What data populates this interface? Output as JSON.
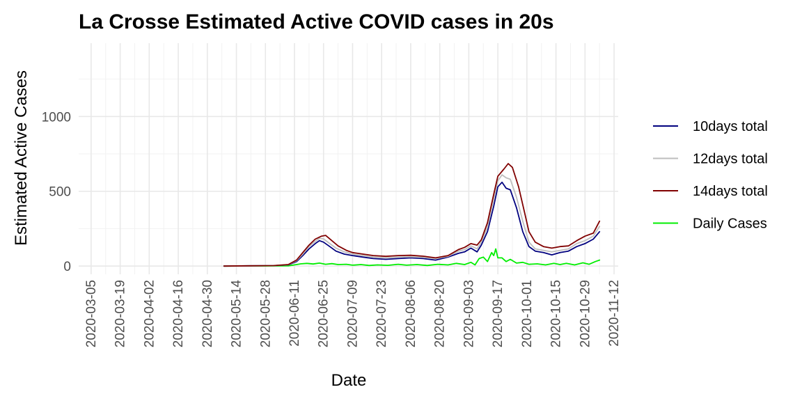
{
  "chart_data": {
    "type": "line",
    "title": "La Crosse Estimated Active COVID cases in 20s",
    "xlabel": "Date",
    "ylabel": "Estimated Active Cases",
    "x_axis": {
      "type": "date",
      "range": [
        "2020-02-28",
        "2020-11-14"
      ],
      "ticks": [
        "2020-03-05",
        "2020-03-19",
        "2020-04-02",
        "2020-04-16",
        "2020-04-30",
        "2020-05-14",
        "2020-05-28",
        "2020-06-11",
        "2020-06-25",
        "2020-07-09",
        "2020-07-23",
        "2020-08-06",
        "2020-08-20",
        "2020-09-03",
        "2020-09-17",
        "2020-10-01",
        "2020-10-15",
        "2020-10-29",
        "2020-11-12"
      ]
    },
    "y_axis": {
      "range": [
        -55,
        1490
      ],
      "ticks": [
        0,
        500,
        1000
      ]
    },
    "grid": true,
    "legend_position": "right",
    "series": [
      {
        "name": "10days total",
        "color": "#00007f",
        "points": [
          [
            "2020-05-08",
            0
          ],
          [
            "2020-05-20",
            2
          ],
          [
            "2020-06-01",
            3
          ],
          [
            "2020-06-08",
            8
          ],
          [
            "2020-06-12",
            30
          ],
          [
            "2020-06-15",
            70
          ],
          [
            "2020-06-18",
            115
          ],
          [
            "2020-06-21",
            150
          ],
          [
            "2020-06-23",
            170
          ],
          [
            "2020-06-25",
            160
          ],
          [
            "2020-06-28",
            130
          ],
          [
            "2020-07-01",
            100
          ],
          [
            "2020-07-05",
            80
          ],
          [
            "2020-07-09",
            70
          ],
          [
            "2020-07-14",
            60
          ],
          [
            "2020-07-19",
            50
          ],
          [
            "2020-07-25",
            45
          ],
          [
            "2020-07-31",
            50
          ],
          [
            "2020-08-06",
            55
          ],
          [
            "2020-08-12",
            50
          ],
          [
            "2020-08-18",
            40
          ],
          [
            "2020-08-24",
            60
          ],
          [
            "2020-08-29",
            85
          ],
          [
            "2020-09-01",
            95
          ],
          [
            "2020-09-04",
            120
          ],
          [
            "2020-09-07",
            95
          ],
          [
            "2020-09-09",
            140
          ],
          [
            "2020-09-12",
            230
          ],
          [
            "2020-09-15",
            400
          ],
          [
            "2020-09-17",
            530
          ],
          [
            "2020-09-19",
            560
          ],
          [
            "2020-09-21",
            520
          ],
          [
            "2020-09-23",
            510
          ],
          [
            "2020-09-26",
            390
          ],
          [
            "2020-09-29",
            230
          ],
          [
            "2020-10-02",
            130
          ],
          [
            "2020-10-05",
            100
          ],
          [
            "2020-10-09",
            90
          ],
          [
            "2020-10-13",
            75
          ],
          [
            "2020-10-17",
            90
          ],
          [
            "2020-10-21",
            100
          ],
          [
            "2020-10-25",
            130
          ],
          [
            "2020-10-29",
            150
          ],
          [
            "2020-11-02",
            180
          ],
          [
            "2020-11-05",
            230
          ]
        ]
      },
      {
        "name": "12days total",
        "color": "#bebebe",
        "points": [
          [
            "2020-05-08",
            0
          ],
          [
            "2020-05-20",
            2
          ],
          [
            "2020-06-01",
            3
          ],
          [
            "2020-06-08",
            9
          ],
          [
            "2020-06-12",
            36
          ],
          [
            "2020-06-15",
            80
          ],
          [
            "2020-06-18",
            130
          ],
          [
            "2020-06-21",
            165
          ],
          [
            "2020-06-23",
            185
          ],
          [
            "2020-06-25",
            182
          ],
          [
            "2020-06-28",
            150
          ],
          [
            "2020-07-01",
            120
          ],
          [
            "2020-07-05",
            95
          ],
          [
            "2020-07-09",
            80
          ],
          [
            "2020-07-14",
            70
          ],
          [
            "2020-07-19",
            60
          ],
          [
            "2020-07-25",
            55
          ],
          [
            "2020-07-31",
            60
          ],
          [
            "2020-08-06",
            62
          ],
          [
            "2020-08-12",
            58
          ],
          [
            "2020-08-18",
            50
          ],
          [
            "2020-08-24",
            65
          ],
          [
            "2020-08-29",
            100
          ],
          [
            "2020-09-01",
            110
          ],
          [
            "2020-09-04",
            135
          ],
          [
            "2020-09-07",
            115
          ],
          [
            "2020-09-09",
            160
          ],
          [
            "2020-09-12",
            260
          ],
          [
            "2020-09-15",
            450
          ],
          [
            "2020-09-17",
            570
          ],
          [
            "2020-09-19",
            610
          ],
          [
            "2020-09-21",
            590
          ],
          [
            "2020-09-23",
            580
          ],
          [
            "2020-09-26",
            460
          ],
          [
            "2020-09-29",
            300
          ],
          [
            "2020-10-02",
            160
          ],
          [
            "2020-10-05",
            115
          ],
          [
            "2020-10-09",
            105
          ],
          [
            "2020-10-13",
            95
          ],
          [
            "2020-10-17",
            105
          ],
          [
            "2020-10-21",
            115
          ],
          [
            "2020-10-25",
            150
          ],
          [
            "2020-10-29",
            170
          ],
          [
            "2020-11-02",
            200
          ],
          [
            "2020-11-05",
            265
          ]
        ]
      },
      {
        "name": "14days total",
        "color": "#800000",
        "points": [
          [
            "2020-05-08",
            0
          ],
          [
            "2020-05-20",
            2
          ],
          [
            "2020-06-01",
            3
          ],
          [
            "2020-06-08",
            10
          ],
          [
            "2020-06-12",
            40
          ],
          [
            "2020-06-15",
            90
          ],
          [
            "2020-06-18",
            140
          ],
          [
            "2020-06-21",
            180
          ],
          [
            "2020-06-24",
            200
          ],
          [
            "2020-06-26",
            205
          ],
          [
            "2020-06-29",
            170
          ],
          [
            "2020-07-02",
            135
          ],
          [
            "2020-07-06",
            105
          ],
          [
            "2020-07-09",
            90
          ],
          [
            "2020-07-14",
            80
          ],
          [
            "2020-07-19",
            70
          ],
          [
            "2020-07-25",
            65
          ],
          [
            "2020-07-31",
            70
          ],
          [
            "2020-08-06",
            72
          ],
          [
            "2020-08-12",
            66
          ],
          [
            "2020-08-18",
            55
          ],
          [
            "2020-08-24",
            70
          ],
          [
            "2020-08-29",
            110
          ],
          [
            "2020-09-01",
            125
          ],
          [
            "2020-09-04",
            150
          ],
          [
            "2020-09-07",
            140
          ],
          [
            "2020-09-09",
            175
          ],
          [
            "2020-09-12",
            290
          ],
          [
            "2020-09-15",
            480
          ],
          [
            "2020-09-17",
            600
          ],
          [
            "2020-09-20",
            650
          ],
          [
            "2020-09-22",
            685
          ],
          [
            "2020-09-24",
            660
          ],
          [
            "2020-09-27",
            530
          ],
          [
            "2020-09-30",
            350
          ],
          [
            "2020-10-02",
            230
          ],
          [
            "2020-10-05",
            160
          ],
          [
            "2020-10-09",
            130
          ],
          [
            "2020-10-13",
            120
          ],
          [
            "2020-10-17",
            130
          ],
          [
            "2020-10-21",
            135
          ],
          [
            "2020-10-25",
            170
          ],
          [
            "2020-10-29",
            200
          ],
          [
            "2020-11-02",
            220
          ],
          [
            "2020-11-05",
            300
          ]
        ]
      },
      {
        "name": "Daily Cases",
        "color": "#00ee00",
        "points": [
          [
            "2020-05-08",
            0
          ],
          [
            "2020-05-25",
            1
          ],
          [
            "2020-06-08",
            2
          ],
          [
            "2020-06-11",
            8
          ],
          [
            "2020-06-14",
            15
          ],
          [
            "2020-06-17",
            18
          ],
          [
            "2020-06-20",
            14
          ],
          [
            "2020-06-23",
            20
          ],
          [
            "2020-06-26",
            12
          ],
          [
            "2020-06-29",
            16
          ],
          [
            "2020-07-02",
            10
          ],
          [
            "2020-07-06",
            12
          ],
          [
            "2020-07-09",
            6
          ],
          [
            "2020-07-13",
            10
          ],
          [
            "2020-07-17",
            4
          ],
          [
            "2020-07-21",
            8
          ],
          [
            "2020-07-26",
            5
          ],
          [
            "2020-07-31",
            12
          ],
          [
            "2020-08-04",
            6
          ],
          [
            "2020-08-09",
            10
          ],
          [
            "2020-08-14",
            4
          ],
          [
            "2020-08-19",
            12
          ],
          [
            "2020-08-24",
            8
          ],
          [
            "2020-08-28",
            18
          ],
          [
            "2020-09-01",
            10
          ],
          [
            "2020-09-04",
            25
          ],
          [
            "2020-09-06",
            8
          ],
          [
            "2020-09-08",
            50
          ],
          [
            "2020-09-10",
            60
          ],
          [
            "2020-09-12",
            30
          ],
          [
            "2020-09-14",
            90
          ],
          [
            "2020-09-15",
            70
          ],
          [
            "2020-09-16",
            115
          ],
          [
            "2020-09-17",
            55
          ],
          [
            "2020-09-19",
            55
          ],
          [
            "2020-09-21",
            30
          ],
          [
            "2020-09-23",
            45
          ],
          [
            "2020-09-26",
            20
          ],
          [
            "2020-09-29",
            25
          ],
          [
            "2020-10-02",
            12
          ],
          [
            "2020-10-06",
            15
          ],
          [
            "2020-10-10",
            8
          ],
          [
            "2020-10-14",
            18
          ],
          [
            "2020-10-17",
            10
          ],
          [
            "2020-10-20",
            18
          ],
          [
            "2020-10-24",
            8
          ],
          [
            "2020-10-28",
            22
          ],
          [
            "2020-10-31",
            12
          ],
          [
            "2020-11-03",
            30
          ],
          [
            "2020-11-05",
            40
          ]
        ]
      }
    ]
  }
}
